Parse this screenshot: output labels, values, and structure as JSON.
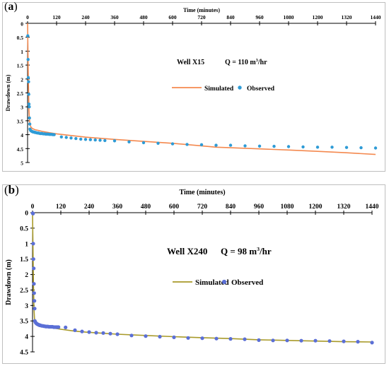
{
  "chart_data": [
    {
      "type": "line",
      "panel_label_open": "(",
      "panel_label_letter": "a",
      "panel_label_close": ")",
      "xlabel": "Time (minutes)",
      "ylabel": "Drawdown (m)",
      "xlim": [
        0,
        1440
      ],
      "ylim": [
        0,
        5
      ],
      "y_inverted": true,
      "x_axis_position": "top",
      "x_ticks": [
        0,
        120,
        240,
        360,
        480,
        600,
        720,
        840,
        960,
        1080,
        1200,
        1320,
        1440
      ],
      "y_ticks": [
        0,
        0.5,
        1,
        1.5,
        2,
        2.5,
        3,
        3.5,
        4,
        4.5,
        5
      ],
      "y_tick_labels": [
        "0",
        "0.5",
        "1",
        "1.5",
        "2",
        "2.5",
        "3",
        "3.5",
        "4",
        "4.5",
        "5"
      ],
      "grid": false,
      "annotation_well": "Well X15",
      "annotation_q_prefix": "Q = 110 m",
      "annotation_q_sup": "3",
      "annotation_q_suffix": "/hr",
      "legend_placement": "center",
      "series": [
        {
          "name": "Simulated",
          "kind": "line",
          "color": "#f4894f",
          "x": [
            0,
            1,
            2,
            3,
            4,
            5,
            6,
            8,
            10,
            15,
            20,
            30,
            45,
            60,
            90,
            120,
            180,
            240,
            300,
            360,
            480,
            600,
            720,
            780,
            840,
            960,
            1080,
            1200,
            1320,
            1440
          ],
          "y": [
            0,
            0.6,
            1.3,
            1.9,
            2.4,
            2.8,
            3.15,
            3.45,
            3.65,
            3.74,
            3.78,
            3.82,
            3.85,
            3.88,
            3.93,
            3.97,
            4.03,
            4.09,
            4.13,
            4.17,
            4.24,
            4.31,
            4.4,
            4.45,
            4.47,
            4.51,
            4.55,
            4.6,
            4.65,
            4.71
          ]
        },
        {
          "name": "Observed",
          "kind": "scatter",
          "color": "#2e9bd6",
          "x": [
            1,
            2,
            3,
            4,
            5,
            6,
            7,
            8,
            9,
            10,
            12,
            14,
            16,
            18,
            20,
            22,
            25,
            28,
            30,
            33,
            36,
            40,
            44,
            48,
            52,
            56,
            60,
            65,
            70,
            75,
            80,
            85,
            90,
            95,
            100,
            105,
            110,
            140,
            160,
            180,
            200,
            220,
            240,
            260,
            280,
            300,
            320,
            360,
            420,
            480,
            540,
            600,
            660,
            720,
            780,
            840,
            900,
            960,
            1020,
            1080,
            1140,
            1200,
            1260,
            1320,
            1380,
            1440
          ],
          "y": [
            0.45,
            1.3,
            1.95,
            2.1,
            2.55,
            2.9,
            3.0,
            3.4,
            3.62,
            3.8,
            3.84,
            3.86,
            3.87,
            3.88,
            3.89,
            3.9,
            3.9,
            3.91,
            3.92,
            3.92,
            3.93,
            3.94,
            3.94,
            3.95,
            3.96,
            3.96,
            3.96,
            3.97,
            3.97,
            3.98,
            3.98,
            3.98,
            3.99,
            3.99,
            3.99,
            4.0,
            4.0,
            4.08,
            4.1,
            4.12,
            4.14,
            4.16,
            4.17,
            4.18,
            4.19,
            4.2,
            4.21,
            4.22,
            4.26,
            4.29,
            4.31,
            4.33,
            4.35,
            4.36,
            4.38,
            4.38,
            4.4,
            4.41,
            4.42,
            4.43,
            4.44,
            4.45,
            4.45,
            4.46,
            4.47,
            4.48
          ]
        }
      ]
    },
    {
      "type": "line",
      "panel_label_open": "(",
      "panel_label_letter": "b",
      "panel_label_close": ")",
      "xlabel": "Time (minutes)",
      "ylabel": "Drawdown (m)",
      "xlim": [
        0,
        1440
      ],
      "ylim": [
        0,
        4.5
      ],
      "y_inverted": true,
      "x_axis_position": "top",
      "x_ticks": [
        0,
        120,
        240,
        360,
        480,
        600,
        720,
        840,
        960,
        1080,
        1200,
        1320,
        1440
      ],
      "y_ticks": [
        0,
        0.5,
        1,
        1.5,
        2,
        2.5,
        3,
        3.5,
        4,
        4.5
      ],
      "y_tick_labels": [
        "0",
        "0.5",
        "1",
        "1.5",
        "2",
        "2.5",
        "3",
        "3.5",
        "4",
        "4.5"
      ],
      "grid": false,
      "annotation_well": "Well X240",
      "annotation_q_prefix": "Q = 98 m",
      "annotation_q_sup": "3",
      "annotation_q_suffix": "/hr",
      "legend_placement": "center",
      "series": [
        {
          "name": "Simulated",
          "kind": "line",
          "color": "#a89a2a",
          "x": [
            0,
            1,
            2,
            3,
            4,
            5,
            6,
            8,
            10,
            15,
            20,
            30,
            45,
            60,
            90,
            120,
            180,
            240,
            300,
            360,
            480,
            600,
            720,
            840,
            960,
            1080,
            1200,
            1320,
            1440
          ],
          "y": [
            0,
            0.55,
            1.2,
            1.8,
            2.3,
            2.75,
            3.1,
            3.4,
            3.52,
            3.57,
            3.6,
            3.63,
            3.66,
            3.69,
            3.73,
            3.77,
            3.83,
            3.87,
            3.9,
            3.93,
            3.97,
            4.01,
            4.04,
            4.07,
            4.11,
            4.13,
            4.15,
            4.17,
            4.18
          ]
        },
        {
          "name": "Observed",
          "kind": "scatter",
          "color": "#5b6fd6",
          "x": [
            1,
            2,
            3,
            4,
            5,
            6,
            7,
            8,
            9,
            10,
            12,
            14,
            16,
            18,
            20,
            22,
            25,
            28,
            30,
            33,
            36,
            40,
            44,
            48,
            52,
            56,
            60,
            65,
            70,
            75,
            80,
            85,
            90,
            95,
            100,
            105,
            110,
            140,
            180,
            210,
            240,
            270,
            300,
            330,
            360,
            420,
            480,
            540,
            600,
            660,
            720,
            780,
            840,
            900,
            960,
            1020,
            1080,
            1140,
            1200,
            1260,
            1320,
            1380,
            1440
          ],
          "y": [
            0.02,
            0.03,
            1.0,
            1.5,
            1.8,
            2.3,
            2.6,
            2.85,
            3.1,
            3.5,
            3.54,
            3.56,
            3.58,
            3.59,
            3.6,
            3.61,
            3.62,
            3.63,
            3.64,
            3.64,
            3.65,
            3.66,
            3.66,
            3.67,
            3.67,
            3.68,
            3.68,
            3.68,
            3.69,
            3.69,
            3.69,
            3.69,
            3.7,
            3.7,
            3.7,
            3.7,
            3.7,
            3.71,
            3.8,
            3.84,
            3.86,
            3.88,
            3.89,
            3.91,
            3.93,
            3.97,
            3.99,
            4.01,
            4.03,
            4.05,
            4.06,
            4.07,
            4.08,
            4.09,
            4.12,
            4.13,
            4.13,
            4.14,
            4.14,
            4.15,
            4.16,
            4.17,
            4.2
          ]
        }
      ]
    }
  ]
}
